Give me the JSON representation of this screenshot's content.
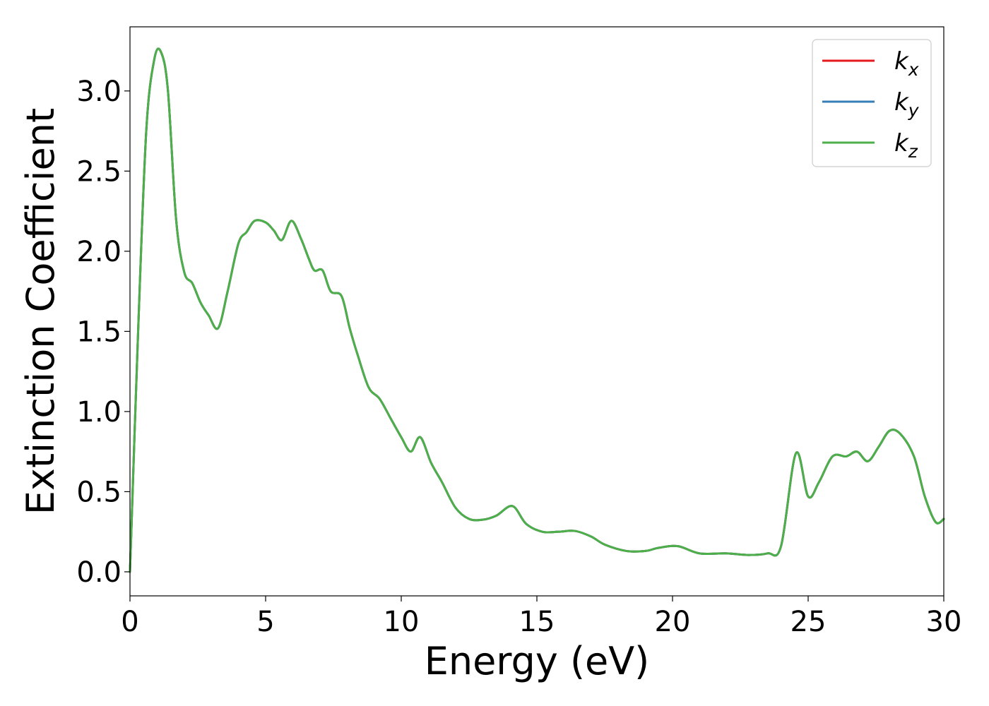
{
  "chart_data": {
    "type": "line",
    "title": "",
    "xlabel": "Energy (eV)",
    "ylabel": "Extinction Coefficient",
    "xlim": [
      0,
      30
    ],
    "ylim": [
      -0.15,
      3.4
    ],
    "xticks": [
      0,
      5,
      10,
      15,
      20,
      25,
      30
    ],
    "xtick_labels": [
      "0",
      "5",
      "10",
      "15",
      "20",
      "25",
      "30"
    ],
    "yticks": [
      0.0,
      0.5,
      1.0,
      1.5,
      2.0,
      2.5,
      3.0
    ],
    "ytick_labels": [
      "0.0",
      "0.5",
      "1.0",
      "1.5",
      "2.0",
      "2.5",
      "3.0"
    ],
    "grid": false,
    "legend": {
      "position": "top-right",
      "entries": [
        {
          "base": "k",
          "sub": "x",
          "color": "#e41a1c"
        },
        {
          "base": "k",
          "sub": "y",
          "color": "#377eb8"
        },
        {
          "base": "k",
          "sub": "z",
          "color": "#4daf4a"
        }
      ]
    },
    "x": [
      0,
      0.3,
      0.6,
      0.9,
      1.15,
      1.4,
      1.7,
      2.0,
      2.3,
      2.6,
      2.9,
      3.25,
      3.6,
      4.0,
      4.3,
      4.6,
      5.0,
      5.3,
      5.6,
      5.95,
      6.3,
      6.6,
      6.8,
      7.1,
      7.4,
      7.8,
      8.1,
      8.4,
      8.8,
      9.2,
      9.6,
      10.0,
      10.35,
      10.7,
      11.1,
      11.5,
      12.0,
      12.5,
      13.0,
      13.5,
      14.1,
      14.6,
      15.2,
      15.8,
      16.4,
      17.0,
      17.5,
      18.3,
      19.0,
      19.5,
      20.2,
      21.0,
      22.0,
      22.8,
      23.5,
      24.0,
      24.55,
      25.0,
      25.4,
      25.9,
      26.4,
      26.8,
      27.2,
      27.6,
      28.0,
      28.4,
      28.9,
      29.3,
      29.7,
      30.0
    ],
    "series": [
      {
        "name": "k_x",
        "color": "#e41a1c",
        "values": [
          0.0,
          1.5,
          2.75,
          3.2,
          3.24,
          3.0,
          2.2,
          1.87,
          1.8,
          1.68,
          1.6,
          1.52,
          1.75,
          2.05,
          2.12,
          2.19,
          2.18,
          2.13,
          2.07,
          2.19,
          2.08,
          1.95,
          1.88,
          1.88,
          1.75,
          1.72,
          1.52,
          1.35,
          1.15,
          1.08,
          0.96,
          0.84,
          0.75,
          0.84,
          0.68,
          0.56,
          0.4,
          0.33,
          0.325,
          0.35,
          0.41,
          0.3,
          0.25,
          0.25,
          0.255,
          0.22,
          0.17,
          0.13,
          0.13,
          0.15,
          0.16,
          0.115,
          0.115,
          0.105,
          0.115,
          0.16,
          0.74,
          0.47,
          0.56,
          0.72,
          0.72,
          0.75,
          0.69,
          0.78,
          0.88,
          0.86,
          0.72,
          0.47,
          0.31,
          0.33
        ]
      },
      {
        "name": "k_y",
        "color": "#377eb8",
        "values": [
          0.0,
          1.5,
          2.75,
          3.2,
          3.24,
          3.0,
          2.2,
          1.87,
          1.8,
          1.68,
          1.6,
          1.52,
          1.75,
          2.05,
          2.12,
          2.19,
          2.18,
          2.13,
          2.07,
          2.19,
          2.08,
          1.95,
          1.88,
          1.88,
          1.75,
          1.72,
          1.52,
          1.35,
          1.15,
          1.08,
          0.96,
          0.84,
          0.75,
          0.84,
          0.68,
          0.56,
          0.4,
          0.33,
          0.325,
          0.35,
          0.41,
          0.3,
          0.25,
          0.25,
          0.255,
          0.22,
          0.17,
          0.13,
          0.13,
          0.15,
          0.16,
          0.115,
          0.115,
          0.105,
          0.115,
          0.16,
          0.74,
          0.47,
          0.56,
          0.72,
          0.72,
          0.75,
          0.69,
          0.78,
          0.88,
          0.86,
          0.72,
          0.47,
          0.31,
          0.33
        ]
      },
      {
        "name": "k_z",
        "color": "#4daf4a",
        "values": [
          0.0,
          1.5,
          2.75,
          3.2,
          3.24,
          3.0,
          2.2,
          1.87,
          1.8,
          1.68,
          1.6,
          1.52,
          1.75,
          2.05,
          2.12,
          2.19,
          2.18,
          2.13,
          2.07,
          2.19,
          2.08,
          1.95,
          1.88,
          1.88,
          1.75,
          1.72,
          1.52,
          1.35,
          1.15,
          1.08,
          0.96,
          0.84,
          0.75,
          0.84,
          0.68,
          0.56,
          0.4,
          0.33,
          0.325,
          0.35,
          0.41,
          0.3,
          0.25,
          0.25,
          0.255,
          0.22,
          0.17,
          0.13,
          0.13,
          0.15,
          0.16,
          0.115,
          0.115,
          0.105,
          0.115,
          0.16,
          0.74,
          0.47,
          0.56,
          0.72,
          0.72,
          0.75,
          0.69,
          0.78,
          0.88,
          0.86,
          0.72,
          0.47,
          0.31,
          0.33
        ]
      }
    ]
  }
}
